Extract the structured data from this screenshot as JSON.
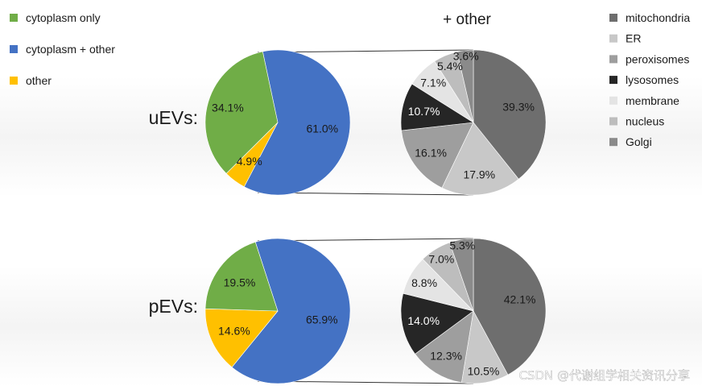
{
  "chart_data": [
    {
      "type": "pie",
      "name": "uEVs",
      "row_label": "uEVs:",
      "title": "",
      "categories": [
        "cytoplasm only",
        "cytoplasm + other",
        "other"
      ],
      "values": [
        34.1,
        61.0,
        4.9
      ],
      "value_labels": [
        "34.1%",
        "61.0%",
        "4.9%"
      ]
    },
    {
      "type": "pie",
      "name": "uEVs + other",
      "title": "+ other",
      "categories": [
        "mitochondria",
        "ER",
        "peroxisomes",
        "lysosomes",
        "membrane",
        "nucleus",
        "Golgi"
      ],
      "values": [
        39.3,
        17.9,
        16.1,
        10.7,
        7.1,
        5.4,
        3.6
      ],
      "value_labels": [
        "39.3%",
        "17.9%",
        "16.1%",
        "10.7%",
        "7.1%",
        "5.4%",
        "3.6%"
      ]
    },
    {
      "type": "pie",
      "name": "pEVs",
      "row_label": "pEVs:",
      "title": "",
      "categories": [
        "cytoplasm only",
        "cytoplasm + other",
        "other"
      ],
      "values": [
        19.5,
        65.9,
        14.6
      ],
      "value_labels": [
        "19.5%",
        "65.9%",
        "14.6%"
      ]
    },
    {
      "type": "pie",
      "name": "pEVs + other",
      "title": "",
      "categories": [
        "mitochondria",
        "ER",
        "peroxisomes",
        "lysosomes",
        "membrane",
        "nucleus",
        "Golgi"
      ],
      "values": [
        42.1,
        10.5,
        12.3,
        14.0,
        8.8,
        7.0,
        5.3
      ],
      "value_labels": [
        "42.1%",
        "10.5%",
        "12.3%",
        "14.0%",
        "8.8%",
        "7.0%",
        "5.3%"
      ]
    }
  ],
  "legend_main": [
    {
      "label": "cytoplasm only",
      "color": "#70ad47"
    },
    {
      "label": "cytoplasm + other",
      "color": "#4472c4"
    },
    {
      "label": "other",
      "color": "#ffc000"
    }
  ],
  "legend_other": [
    {
      "label": "mitochondria",
      "color": "#6e6e6e"
    },
    {
      "label": "ER",
      "color": "#c8c8c8"
    },
    {
      "label": "peroxisomes",
      "color": "#9e9e9e"
    },
    {
      "label": "lysosomes",
      "color": "#262626"
    },
    {
      "label": "membrane",
      "color": "#e4e4e4"
    },
    {
      "label": "nucleus",
      "color": "#bdbdbd"
    },
    {
      "label": "Golgi",
      "color": "#8a8a8a"
    }
  ],
  "watermark": "CSDN @代谢组学相关资讯分享"
}
